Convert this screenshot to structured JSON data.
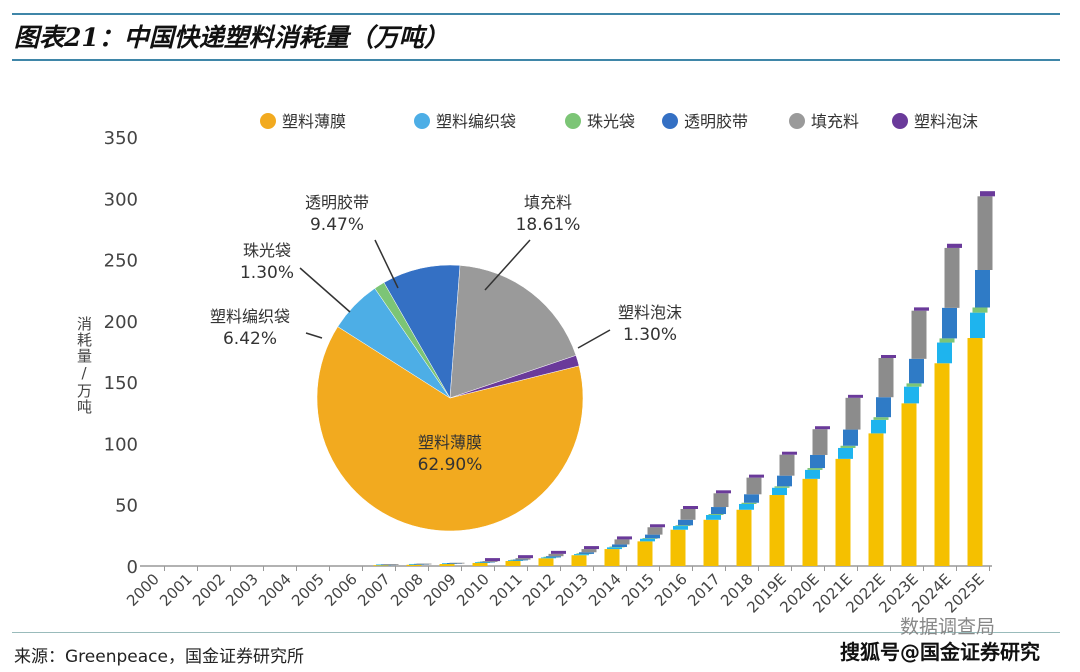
{
  "title": "图表21：中国快递塑料消耗量（万吨）",
  "source": "来源：Greenpeace，国金证券研究所",
  "watermark_top": "数据调查局",
  "watermark_bottom": "搜狐号@国金证券研究",
  "chart_data": [
    {
      "type": "bar",
      "stacked": true,
      "ylabel": "消耗量/万吨",
      "ylim": [
        0,
        350
      ],
      "yticks": [
        0,
        50,
        100,
        150,
        200,
        250,
        300,
        350
      ],
      "legend_position": "top",
      "categories": [
        "2000",
        "2001",
        "2002",
        "2003",
        "2004",
        "2005",
        "2006",
        "2007",
        "2008",
        "2009",
        "2010",
        "2011",
        "2012",
        "2013",
        "2014",
        "2015",
        "2016",
        "2017",
        "2018",
        "2019E",
        "2020E",
        "2021E",
        "2022E",
        "2023E",
        "2024E",
        "2025E"
      ],
      "series": [
        {
          "name": "塑料薄膜",
          "color": "#f5c000",
          "values": [
            0,
            0,
            0,
            0,
            0,
            0,
            0,
            0.6,
            1.0,
            1.6,
            2.5,
            4.1,
            6.3,
            8.8,
            13.8,
            20.1,
            29.6,
            37.7,
            45.9,
            57.9,
            71.1,
            87.4,
            108.2,
            132.7,
            165.4,
            186
          ]
        },
        {
          "name": "塑料编织袋",
          "color": "#1eb4ee",
          "values": [
            0,
            0,
            0,
            0,
            0,
            0,
            0,
            0.1,
            0.1,
            0.2,
            0.3,
            0.4,
            0.6,
            0.9,
            1.4,
            2.1,
            3.0,
            3.9,
            4.7,
            5.9,
            7.3,
            8.9,
            11.0,
            13.6,
            16.9,
            20.7
          ]
        },
        {
          "name": "珠光袋",
          "color": "#7cc576",
          "values": [
            0,
            0,
            0,
            0,
            0,
            0,
            0,
            0,
            0,
            0,
            0.1,
            0.1,
            0.1,
            0.2,
            0.3,
            0.4,
            0.6,
            0.8,
            1.0,
            1.2,
            1.5,
            1.8,
            2.2,
            2.7,
            3.4,
            4.2
          ]
        },
        {
          "name": "透明胶带",
          "color": "#2f7bc6",
          "values": [
            0,
            0,
            0,
            0,
            0,
            0,
            0,
            0.1,
            0.2,
            0.2,
            0.4,
            0.6,
            1.0,
            1.3,
            2.1,
            3.0,
            4.5,
            5.7,
            6.9,
            8.7,
            10.7,
            13.2,
            16.3,
            20.0,
            24.9,
            30.6
          ]
        },
        {
          "name": "填充料",
          "color": "#8c8c8c",
          "values": [
            0,
            0,
            0,
            0,
            0,
            0,
            0,
            0.2,
            0.3,
            0.5,
            0.7,
            1.2,
            1.9,
            2.6,
            4.1,
            6.0,
            8.8,
            11.2,
            13.6,
            17.1,
            21.0,
            25.9,
            32.0,
            39.3,
            48.9,
            60.1
          ]
        },
        {
          "name": "塑料泡沫",
          "color": "#6a3a9a",
          "values": [
            0,
            0,
            0,
            0,
            0,
            0,
            0,
            0,
            0,
            0,
            0.1,
            0.1,
            0.1,
            0.2,
            0.3,
            0.4,
            0.6,
            0.8,
            1.0,
            1.2,
            1.5,
            1.8,
            2.2,
            2.7,
            3.4,
            4.2
          ]
        }
      ]
    },
    {
      "type": "pie",
      "slices": [
        {
          "name": "塑料薄膜",
          "value": 62.9,
          "label": "62.90%",
          "color": "#f2aa1f"
        },
        {
          "name": "塑料编织袋",
          "value": 6.42,
          "label": "6.42%",
          "color": "#4daee6"
        },
        {
          "name": "珠光袋",
          "value": 1.3,
          "label": "1.30%",
          "color": "#7cc576"
        },
        {
          "name": "透明胶带",
          "value": 9.47,
          "label": "9.47%",
          "color": "#3470c4"
        },
        {
          "name": "填充料",
          "value": 18.61,
          "label": "18.61%",
          "color": "#9a9a9a"
        },
        {
          "name": "塑料泡沫",
          "value": 1.3,
          "label": "1.30%",
          "color": "#6a3a9a"
        }
      ]
    }
  ]
}
